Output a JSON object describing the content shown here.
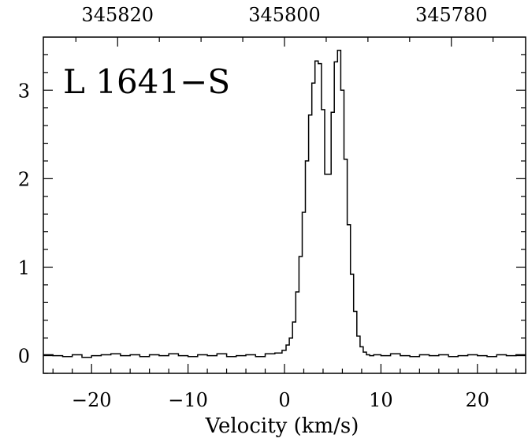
{
  "chart_data": {
    "type": "line",
    "title": "L 1641−S",
    "xlabel": "Velocity (km/s)",
    "ylabel": "",
    "xlim": [
      -25,
      25
    ],
    "ylim": [
      -0.2,
      3.6
    ],
    "x_ticks": [
      {
        "value": -20,
        "label": "−20"
      },
      {
        "value": -10,
        "label": "−10"
      },
      {
        "value": 0,
        "label": "0"
      },
      {
        "value": 10,
        "label": "10"
      },
      {
        "value": 20,
        "label": "20"
      }
    ],
    "y_ticks": [
      {
        "value": 0,
        "label": "0"
      },
      {
        "value": 1,
        "label": "1"
      },
      {
        "value": 2,
        "label": "2"
      },
      {
        "value": 3,
        "label": "3"
      }
    ],
    "top_axis": {
      "ticks": [
        {
          "value": 345820,
          "label": "345820"
        },
        {
          "value": 345800,
          "label": "345800"
        },
        {
          "value": 345780,
          "label": "345780"
        }
      ]
    },
    "series": [
      {
        "style": "histogram",
        "x": [
          -24.5,
          -23.5,
          -22.5,
          -21.5,
          -20.5,
          -19.5,
          -18.5,
          -17.5,
          -16.5,
          -15.5,
          -14.5,
          -13.5,
          -12.5,
          -11.5,
          -10.5,
          -9.5,
          -8.5,
          -7.5,
          -6.5,
          -5.5,
          -4.5,
          -3.5,
          -2.5,
          -1.5,
          -0.5,
          0.0,
          0.33,
          0.67,
          1.0,
          1.33,
          1.67,
          2.0,
          2.33,
          2.67,
          3.0,
          3.33,
          3.67,
          4.0,
          4.33,
          4.67,
          5.0,
          5.33,
          5.67,
          6.0,
          6.33,
          6.67,
          7.0,
          7.33,
          7.67,
          8.0,
          8.33,
          8.67,
          9.0,
          9.5,
          10.5,
          11.5,
          12.5,
          13.5,
          14.5,
          15.5,
          16.5,
          17.5,
          18.5,
          19.5,
          20.5,
          21.5,
          22.5,
          23.5,
          24.5
        ],
        "y": [
          0.01,
          0.0,
          -0.01,
          0.01,
          -0.02,
          0.0,
          0.01,
          0.02,
          0.0,
          0.01,
          -0.01,
          0.01,
          0.0,
          0.02,
          0.0,
          -0.01,
          0.01,
          0.0,
          0.02,
          -0.01,
          0.0,
          0.01,
          -0.01,
          0.02,
          0.03,
          0.06,
          0.12,
          0.2,
          0.38,
          0.72,
          1.12,
          1.62,
          2.2,
          2.72,
          3.08,
          3.33,
          3.3,
          2.78,
          2.05,
          2.05,
          2.75,
          3.32,
          3.45,
          3.0,
          2.22,
          1.48,
          0.92,
          0.5,
          0.22,
          0.1,
          0.04,
          0.01,
          0.0,
          0.01,
          0.0,
          0.02,
          0.0,
          -0.01,
          0.01,
          0.0,
          0.01,
          -0.01,
          0.0,
          0.01,
          0.0,
          -0.01,
          0.01,
          0.0,
          0.01
        ]
      }
    ]
  }
}
